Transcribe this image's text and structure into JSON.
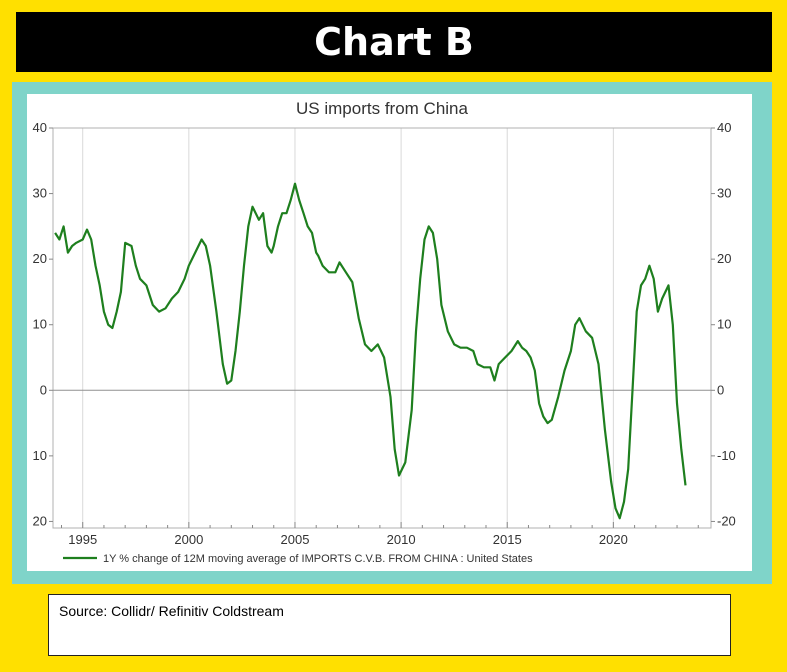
{
  "banner": {
    "title": "Chart B"
  },
  "source": {
    "text": "Source:  Collidr/ Refinitiv Coldstream"
  },
  "colors": {
    "background": "#FFE000",
    "frame": "#7FD4C9",
    "line": "#1E7F1E",
    "banner": "#000000"
  },
  "chart_data": {
    "type": "line",
    "title": "US imports from China",
    "xlabel": "",
    "ylabel": "",
    "xlim": [
      1993.6,
      2024.6
    ],
    "ylim": [
      -21,
      40
    ],
    "y_ticks": [
      40,
      30,
      20,
      10,
      0,
      -10,
      -20
    ],
    "y_tick_labels_left": [
      "40",
      "30",
      "20",
      "10",
      "0",
      "10",
      "20"
    ],
    "y_tick_labels_right": [
      "40",
      "30",
      "20",
      "10",
      "0",
      "-10",
      "-20"
    ],
    "x_ticks": [
      1995,
      2000,
      2005,
      2010,
      2015,
      2020
    ],
    "x_tick_labels": [
      "1995",
      "2000",
      "2005",
      "2010",
      "2015",
      "2020"
    ],
    "x_gridlines": [
      1995,
      2000,
      2005,
      2010,
      2015,
      2020
    ],
    "zero_line": true,
    "legend_position": "bottom-left",
    "series": [
      {
        "name": "1Y % change of 12M moving average of IMPORTS C.V.B. FROM CHINA : United States",
        "x": [
          1993.7,
          1993.9,
          1994.1,
          1994.3,
          1994.5,
          1994.7,
          1995.0,
          1995.2,
          1995.4,
          1995.6,
          1995.8,
          1996.0,
          1996.2,
          1996.4,
          1996.6,
          1996.8,
          1997.0,
          1997.3,
          1997.5,
          1997.7,
          1998.0,
          1998.3,
          1998.6,
          1998.9,
          1999.2,
          1999.5,
          1999.8,
          2000.0,
          2000.3,
          2000.6,
          2000.8,
          2001.0,
          2001.3,
          2001.6,
          2001.8,
          2002.0,
          2002.2,
          2002.4,
          2002.6,
          2002.8,
          2003.0,
          2003.3,
          2003.5,
          2003.7,
          2003.9,
          2004.0,
          2004.2,
          2004.4,
          2004.6,
          2004.8,
          2005.0,
          2005.2,
          2005.4,
          2005.6,
          2005.8,
          2006.0,
          2006.1,
          2006.3,
          2006.6,
          2006.9,
          2007.1,
          2007.4,
          2007.7,
          2008.0,
          2008.3,
          2008.6,
          2008.9,
          2009.2,
          2009.5,
          2009.7,
          2009.9,
          2010.2,
          2010.5,
          2010.7,
          2010.9,
          2011.1,
          2011.3,
          2011.5,
          2011.7,
          2011.9,
          2012.2,
          2012.5,
          2012.8,
          2013.1,
          2013.4,
          2013.6,
          2013.9,
          2014.2,
          2014.4,
          2014.6,
          2014.9,
          2015.2,
          2015.5,
          2015.7,
          2015.9,
          2016.1,
          2016.3,
          2016.5,
          2016.7,
          2016.9,
          2017.1,
          2017.4,
          2017.7,
          2018.0,
          2018.2,
          2018.4,
          2018.7,
          2019.0,
          2019.3,
          2019.6,
          2019.9,
          2020.1,
          2020.3,
          2020.5,
          2020.7,
          2020.9,
          2021.1,
          2021.3,
          2021.5,
          2021.7,
          2021.9,
          2022.1,
          2022.3,
          2022.6,
          2022.8,
          2023.0,
          2023.2,
          2023.4
        ],
        "values": [
          24,
          23,
          25,
          21,
          22,
          22.5,
          23,
          24.5,
          23,
          19,
          16,
          12,
          10,
          9.5,
          12,
          15,
          22.5,
          22,
          19,
          17,
          16,
          13,
          12,
          12.5,
          14,
          15,
          17,
          19,
          21,
          23,
          22,
          19,
          12,
          4,
          1,
          1.5,
          6,
          12,
          19,
          25,
          28,
          26,
          27,
          22,
          21,
          22,
          25,
          27,
          27,
          29,
          31.5,
          29,
          27,
          25,
          24,
          21,
          20.5,
          19,
          18,
          18,
          19.5,
          18,
          16.5,
          11,
          7,
          6,
          7,
          5,
          -1,
          -9,
          -13,
          -11,
          -3,
          9,
          17,
          23,
          25,
          24,
          20,
          13,
          9,
          7,
          6.5,
          6.5,
          6,
          4,
          3.5,
          3.5,
          1.5,
          4,
          5,
          6,
          7.5,
          6.5,
          6,
          5,
          3,
          -2,
          -4,
          -5,
          -4.5,
          -1,
          3,
          6,
          10,
          11,
          9,
          8,
          4,
          -6,
          -14,
          -18,
          -19.5,
          -17,
          -12,
          0,
          12,
          16,
          17,
          19,
          17,
          12,
          14,
          16,
          10,
          -2,
          -9,
          -14.5
        ]
      }
    ]
  }
}
